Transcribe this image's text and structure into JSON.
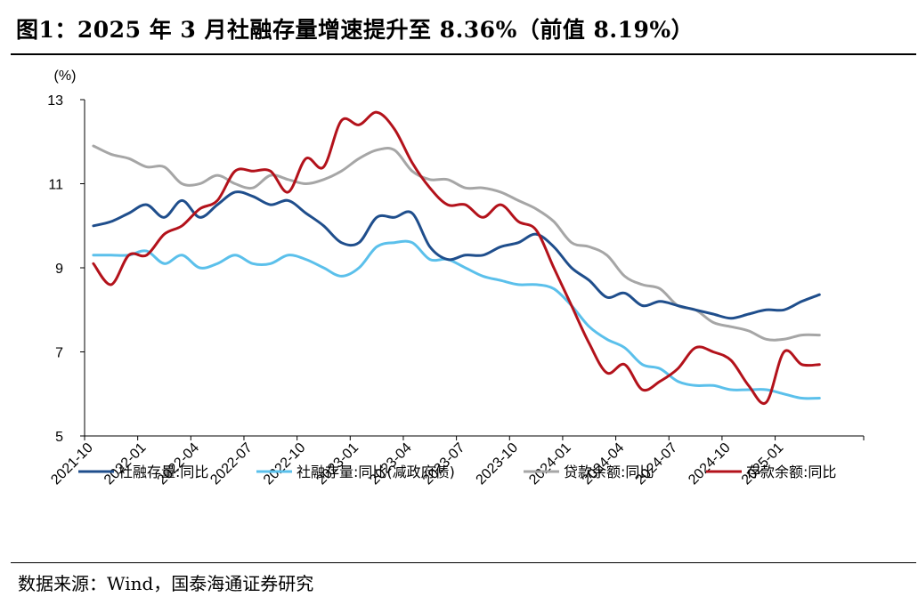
{
  "title": "图1：2025 年 3 月社融存量增速提升至 8.36%（前值 8.19%）",
  "source": "数据来源：Wind，国泰海通证券研究",
  "chart_data": {
    "type": "line",
    "ylabel": "(%)",
    "ylim": [
      5,
      13
    ],
    "yticks": [
      5,
      7,
      9,
      11,
      13
    ],
    "x_start": "2021-10",
    "x_tick_labels": [
      "2021-10",
      "2022-01",
      "2022-04",
      "2022-07",
      "2022-10",
      "2023-01",
      "2023-04",
      "2023-07",
      "2023-10",
      "2024-01",
      "2024-04",
      "2024-07",
      "2024-10",
      "2025-01"
    ],
    "grid": false,
    "legend_position": "bottom",
    "series": [
      {
        "name": "社融存量:同比",
        "color": "#1f4e8c",
        "values": [
          10.0,
          10.1,
          10.3,
          10.5,
          10.2,
          10.6,
          10.2,
          10.5,
          10.8,
          10.7,
          10.5,
          10.6,
          10.3,
          10.0,
          9.6,
          9.6,
          10.2,
          10.2,
          10.3,
          9.5,
          9.2,
          9.3,
          9.3,
          9.5,
          9.6,
          9.8,
          9.5,
          9.0,
          8.7,
          8.3,
          8.4,
          8.1,
          8.2,
          8.1,
          8.0,
          7.9,
          7.8,
          7.9,
          8.0,
          8.0,
          8.2,
          8.36
        ]
      },
      {
        "name": "社融存量:同比(减政府债)",
        "color": "#5bc0eb",
        "values": [
          9.3,
          9.3,
          9.3,
          9.4,
          9.1,
          9.3,
          9.0,
          9.1,
          9.3,
          9.1,
          9.1,
          9.3,
          9.2,
          9.0,
          8.8,
          9.0,
          9.5,
          9.6,
          9.6,
          9.2,
          9.2,
          9.0,
          8.8,
          8.7,
          8.6,
          8.6,
          8.5,
          8.1,
          7.6,
          7.3,
          7.1,
          6.7,
          6.6,
          6.3,
          6.2,
          6.2,
          6.1,
          6.1,
          6.1,
          6.0,
          5.9,
          5.9
        ]
      },
      {
        "name": "贷款余额:同比",
        "color": "#a6a6a6",
        "values": [
          11.9,
          11.7,
          11.6,
          11.4,
          11.4,
          11.0,
          11.0,
          11.2,
          11.0,
          10.9,
          11.2,
          11.1,
          11.0,
          11.1,
          11.3,
          11.6,
          11.8,
          11.8,
          11.3,
          11.1,
          11.1,
          10.9,
          10.9,
          10.8,
          10.6,
          10.4,
          10.1,
          9.6,
          9.5,
          9.3,
          8.8,
          8.6,
          8.5,
          8.1,
          8.0,
          7.7,
          7.6,
          7.5,
          7.3,
          7.3,
          7.4,
          7.4
        ]
      },
      {
        "name": "存款余额:同比",
        "color": "#b3121b",
        "values": [
          9.1,
          8.6,
          9.3,
          9.3,
          9.8,
          10.0,
          10.4,
          10.6,
          11.3,
          11.3,
          11.3,
          10.8,
          11.6,
          11.4,
          12.5,
          12.4,
          12.7,
          12.3,
          11.5,
          10.9,
          10.5,
          10.5,
          10.2,
          10.5,
          10.1,
          9.9,
          9.0,
          8.1,
          7.2,
          6.5,
          6.7,
          6.1,
          6.3,
          6.6,
          7.1,
          7.0,
          6.8,
          6.2,
          5.8,
          7.0,
          6.7,
          6.7
        ]
      }
    ]
  }
}
